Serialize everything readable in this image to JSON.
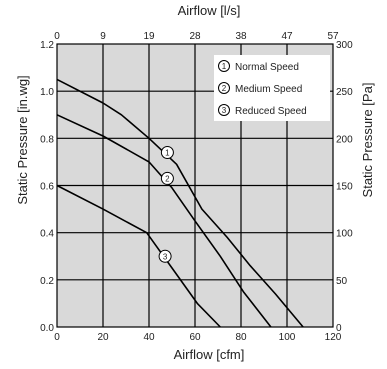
{
  "chart_data": {
    "type": "line",
    "title": "",
    "x_bottom": {
      "label": "Airflow [cfm]",
      "range": [
        0,
        120
      ],
      "ticks": [
        "0",
        "20",
        "40",
        "60",
        "80",
        "100",
        "120"
      ]
    },
    "x_top": {
      "label": "Airflow [l/s]",
      "ticks": [
        "0",
        "9",
        "19",
        "28",
        "38",
        "47",
        "57"
      ]
    },
    "y_left": {
      "label": "Static Pressure [in.wg]",
      "range": [
        0,
        1.2
      ],
      "ticks": [
        "0.0",
        "0.2",
        "0.4",
        "0.6",
        "0.8",
        "1.0",
        "1.2"
      ]
    },
    "y_right": {
      "label": "Static Pressure [Pa]",
      "ticks": [
        "0",
        "50",
        "100",
        "150",
        "200",
        "250",
        "300"
      ]
    },
    "grid": true,
    "background": "#d9d9d9",
    "legend_position": "top-right",
    "legend": [
      {
        "marker": "1",
        "label": "Normal Speed"
      },
      {
        "marker": "2",
        "label": "Medium Speed"
      },
      {
        "marker": "3",
        "label": "Reduced Speed"
      }
    ],
    "series": [
      {
        "marker": "1",
        "x": [
          0,
          20,
          28,
          40,
          52,
          63,
          74,
          84,
          95,
          107
        ],
        "y": [
          1.05,
          0.95,
          0.9,
          0.8,
          0.69,
          0.5,
          0.38,
          0.26,
          0.14,
          0.0
        ],
        "marker_at": [
          48,
          0.74
        ]
      },
      {
        "marker": "2",
        "x": [
          0,
          20,
          40,
          50,
          60,
          71,
          81,
          93
        ],
        "y": [
          0.9,
          0.81,
          0.7,
          0.59,
          0.45,
          0.3,
          0.15,
          0.0
        ],
        "marker_at": [
          48,
          0.63
        ]
      },
      {
        "marker": "3",
        "x": [
          0,
          20,
          39,
          50,
          61,
          71
        ],
        "y": [
          0.6,
          0.5,
          0.4,
          0.25,
          0.1,
          0.0
        ],
        "marker_at": [
          47,
          0.3
        ]
      }
    ]
  }
}
